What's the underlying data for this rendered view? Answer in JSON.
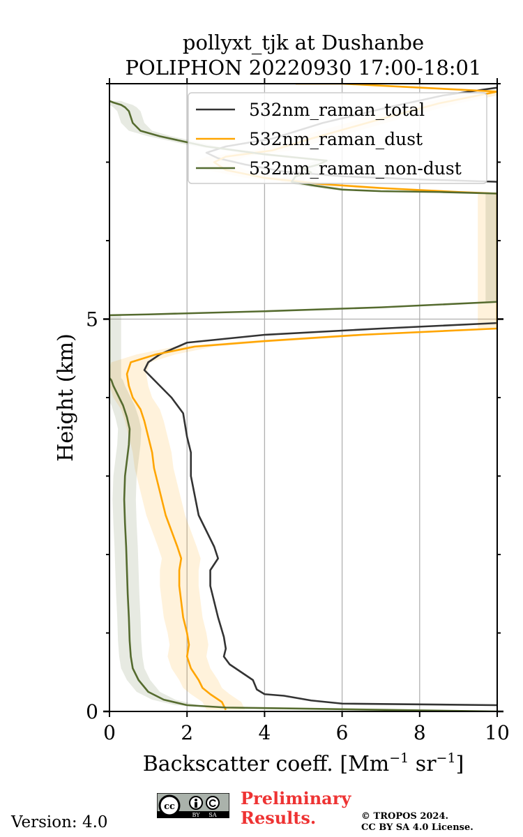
{
  "chart_data": {
    "type": "line",
    "title": [
      "pollyxt_tjk at Dushanbe",
      "POLIPHON 20220930 17:00-18:01"
    ],
    "xlabel": "Backscatter coeff. [Mm",
    "xlabel_sup1": "−1",
    "xlabel_mid": " sr",
    "xlabel_sup2": "−1",
    "xlabel_end": "]",
    "ylabel": "Height (km)",
    "xlim": [
      0,
      10
    ],
    "ylim": [
      0,
      8
    ],
    "xticks": [
      "0",
      "2",
      "4",
      "6",
      "8",
      "10"
    ],
    "xtick_values": [
      0,
      2,
      4,
      6,
      8,
      10
    ],
    "yticks": [
      "0",
      "5"
    ],
    "ytick_values": [
      0,
      5
    ],
    "ytick_minor": [
      1,
      2,
      3,
      4,
      6,
      7,
      8
    ],
    "grid": "x and y major",
    "legend_position": "top-right",
    "series": [
      {
        "name": "532nm_raman_total",
        "color": "#333333",
        "points": [
          [
            10,
            0.08
          ],
          [
            6,
            0.1
          ],
          [
            5.2,
            0.14
          ],
          [
            4.5,
            0.2
          ],
          [
            4.0,
            0.22
          ],
          [
            3.8,
            0.28
          ],
          [
            3.7,
            0.4
          ],
          [
            3.4,
            0.5
          ],
          [
            3.1,
            0.6
          ],
          [
            2.95,
            0.7
          ],
          [
            3.0,
            0.8
          ],
          [
            2.95,
            0.95
          ],
          [
            2.8,
            1.2
          ],
          [
            2.7,
            1.4
          ],
          [
            2.6,
            1.6
          ],
          [
            2.6,
            1.8
          ],
          [
            2.8,
            1.95
          ],
          [
            2.7,
            2.1
          ],
          [
            2.5,
            2.3
          ],
          [
            2.3,
            2.5
          ],
          [
            2.2,
            2.75
          ],
          [
            2.1,
            3.0
          ],
          [
            2.1,
            3.3
          ],
          [
            2.0,
            3.5
          ],
          [
            1.9,
            3.8
          ],
          [
            1.6,
            4.0
          ],
          [
            1.2,
            4.2
          ],
          [
            0.9,
            4.35
          ],
          [
            1.0,
            4.45
          ],
          [
            1.3,
            4.55
          ],
          [
            2.0,
            4.7
          ],
          [
            4.0,
            4.8
          ],
          [
            7.0,
            4.88
          ],
          [
            10,
            4.95
          ],
          [
            10,
            6.75
          ],
          [
            8.0,
            6.78
          ],
          [
            6.0,
            6.82
          ],
          [
            4.5,
            6.88
          ],
          [
            3.5,
            6.97
          ],
          [
            2.8,
            7.05
          ],
          [
            2.5,
            7.12
          ],
          [
            3.0,
            7.2
          ],
          [
            4.2,
            7.3
          ],
          [
            5.5,
            7.5
          ],
          [
            7.2,
            7.7
          ],
          [
            8.6,
            7.85
          ],
          [
            10,
            7.95
          ]
        ]
      },
      {
        "name": "532nm_raman_dust",
        "color": "#ffa500",
        "band": 0.5,
        "points": [
          [
            3.0,
            0.02
          ],
          [
            2.9,
            0.12
          ],
          [
            2.6,
            0.22
          ],
          [
            2.4,
            0.3
          ],
          [
            2.3,
            0.4
          ],
          [
            2.1,
            0.55
          ],
          [
            2.0,
            0.7
          ],
          [
            2.05,
            0.85
          ],
          [
            2.0,
            1.0
          ],
          [
            1.9,
            1.2
          ],
          [
            1.85,
            1.4
          ],
          [
            1.8,
            1.6
          ],
          [
            1.8,
            1.8
          ],
          [
            1.85,
            1.95
          ],
          [
            1.75,
            2.1
          ],
          [
            1.6,
            2.3
          ],
          [
            1.45,
            2.5
          ],
          [
            1.35,
            2.7
          ],
          [
            1.25,
            2.9
          ],
          [
            1.15,
            3.1
          ],
          [
            1.1,
            3.3
          ],
          [
            1.0,
            3.5
          ],
          [
            0.9,
            3.7
          ],
          [
            0.8,
            3.85
          ],
          [
            0.6,
            4.0
          ],
          [
            0.5,
            4.15
          ],
          [
            0.45,
            4.3
          ],
          [
            0.55,
            4.45
          ],
          [
            1.2,
            4.55
          ],
          [
            2.2,
            4.65
          ],
          [
            4.0,
            4.72
          ],
          [
            6.5,
            4.8
          ],
          [
            10,
            4.88
          ],
          [
            10,
            6.6
          ],
          [
            9.0,
            6.62
          ],
          [
            7.0,
            6.67
          ],
          [
            5.5,
            6.72
          ],
          [
            4.0,
            6.8
          ],
          [
            3.0,
            6.9
          ],
          [
            2.7,
            7.0
          ],
          [
            3.0,
            7.07
          ],
          [
            4.2,
            7.15
          ],
          [
            5.2,
            7.3
          ],
          [
            7.0,
            7.55
          ],
          [
            8.5,
            7.75
          ],
          [
            10,
            7.9
          ],
          [
            6.0,
            8.0
          ],
          [
            4.8,
            8.0
          ]
        ]
      },
      {
        "name": "532nm_raman_non-dust",
        "color": "#556b2f",
        "band": 0.3,
        "points": [
          [
            10,
            0.0
          ],
          [
            3.0,
            0.05
          ],
          [
            2.0,
            0.08
          ],
          [
            1.4,
            0.15
          ],
          [
            1.0,
            0.25
          ],
          [
            0.75,
            0.4
          ],
          [
            0.6,
            0.55
          ],
          [
            0.55,
            0.7
          ],
          [
            0.52,
            0.9
          ],
          [
            0.5,
            1.2
          ],
          [
            0.47,
            1.5
          ],
          [
            0.45,
            1.8
          ],
          [
            0.43,
            2.1
          ],
          [
            0.4,
            2.4
          ],
          [
            0.38,
            2.7
          ],
          [
            0.4,
            3.0
          ],
          [
            0.45,
            3.2
          ],
          [
            0.5,
            3.4
          ],
          [
            0.52,
            3.6
          ],
          [
            0.45,
            3.75
          ],
          [
            0.35,
            3.9
          ],
          [
            0.2,
            4.05
          ],
          [
            0.1,
            4.15
          ],
          [
            0.05,
            4.22
          ],
          [
            0.0,
            4.25
          ],
          [
            0.0,
            5.05
          ],
          [
            1.0,
            5.06
          ],
          [
            4.0,
            5.1
          ],
          [
            7.0,
            5.15
          ],
          [
            10,
            5.22
          ],
          [
            10,
            6.6
          ],
          [
            8.5,
            6.62
          ],
          [
            7.0,
            6.63
          ],
          [
            6.0,
            6.65
          ],
          [
            5.3,
            6.7
          ],
          [
            4.7,
            6.75
          ],
          [
            4.8,
            6.82
          ],
          [
            5.2,
            6.87
          ],
          [
            5.0,
            6.92
          ],
          [
            5.4,
            6.97
          ],
          [
            5.6,
            7.02
          ],
          [
            4.0,
            7.1
          ],
          [
            2.5,
            7.2
          ],
          [
            1.3,
            7.33
          ],
          [
            0.8,
            7.4
          ],
          [
            0.6,
            7.5
          ],
          [
            0.5,
            7.65
          ],
          [
            0.4,
            7.7
          ],
          [
            0.3,
            7.73
          ],
          [
            0.1,
            7.76
          ],
          [
            0.0,
            7.78
          ]
        ]
      }
    ]
  },
  "footer": {
    "version": "Version: 4.0",
    "preliminary_line1": "Preliminary",
    "preliminary_line2": "Results.",
    "copyright_line1": "© TROPOS 2024.",
    "copyright_line2": "CC BY SA 4.0 License.",
    "cc_badge": [
      "cc",
      "BY",
      "SA"
    ]
  }
}
